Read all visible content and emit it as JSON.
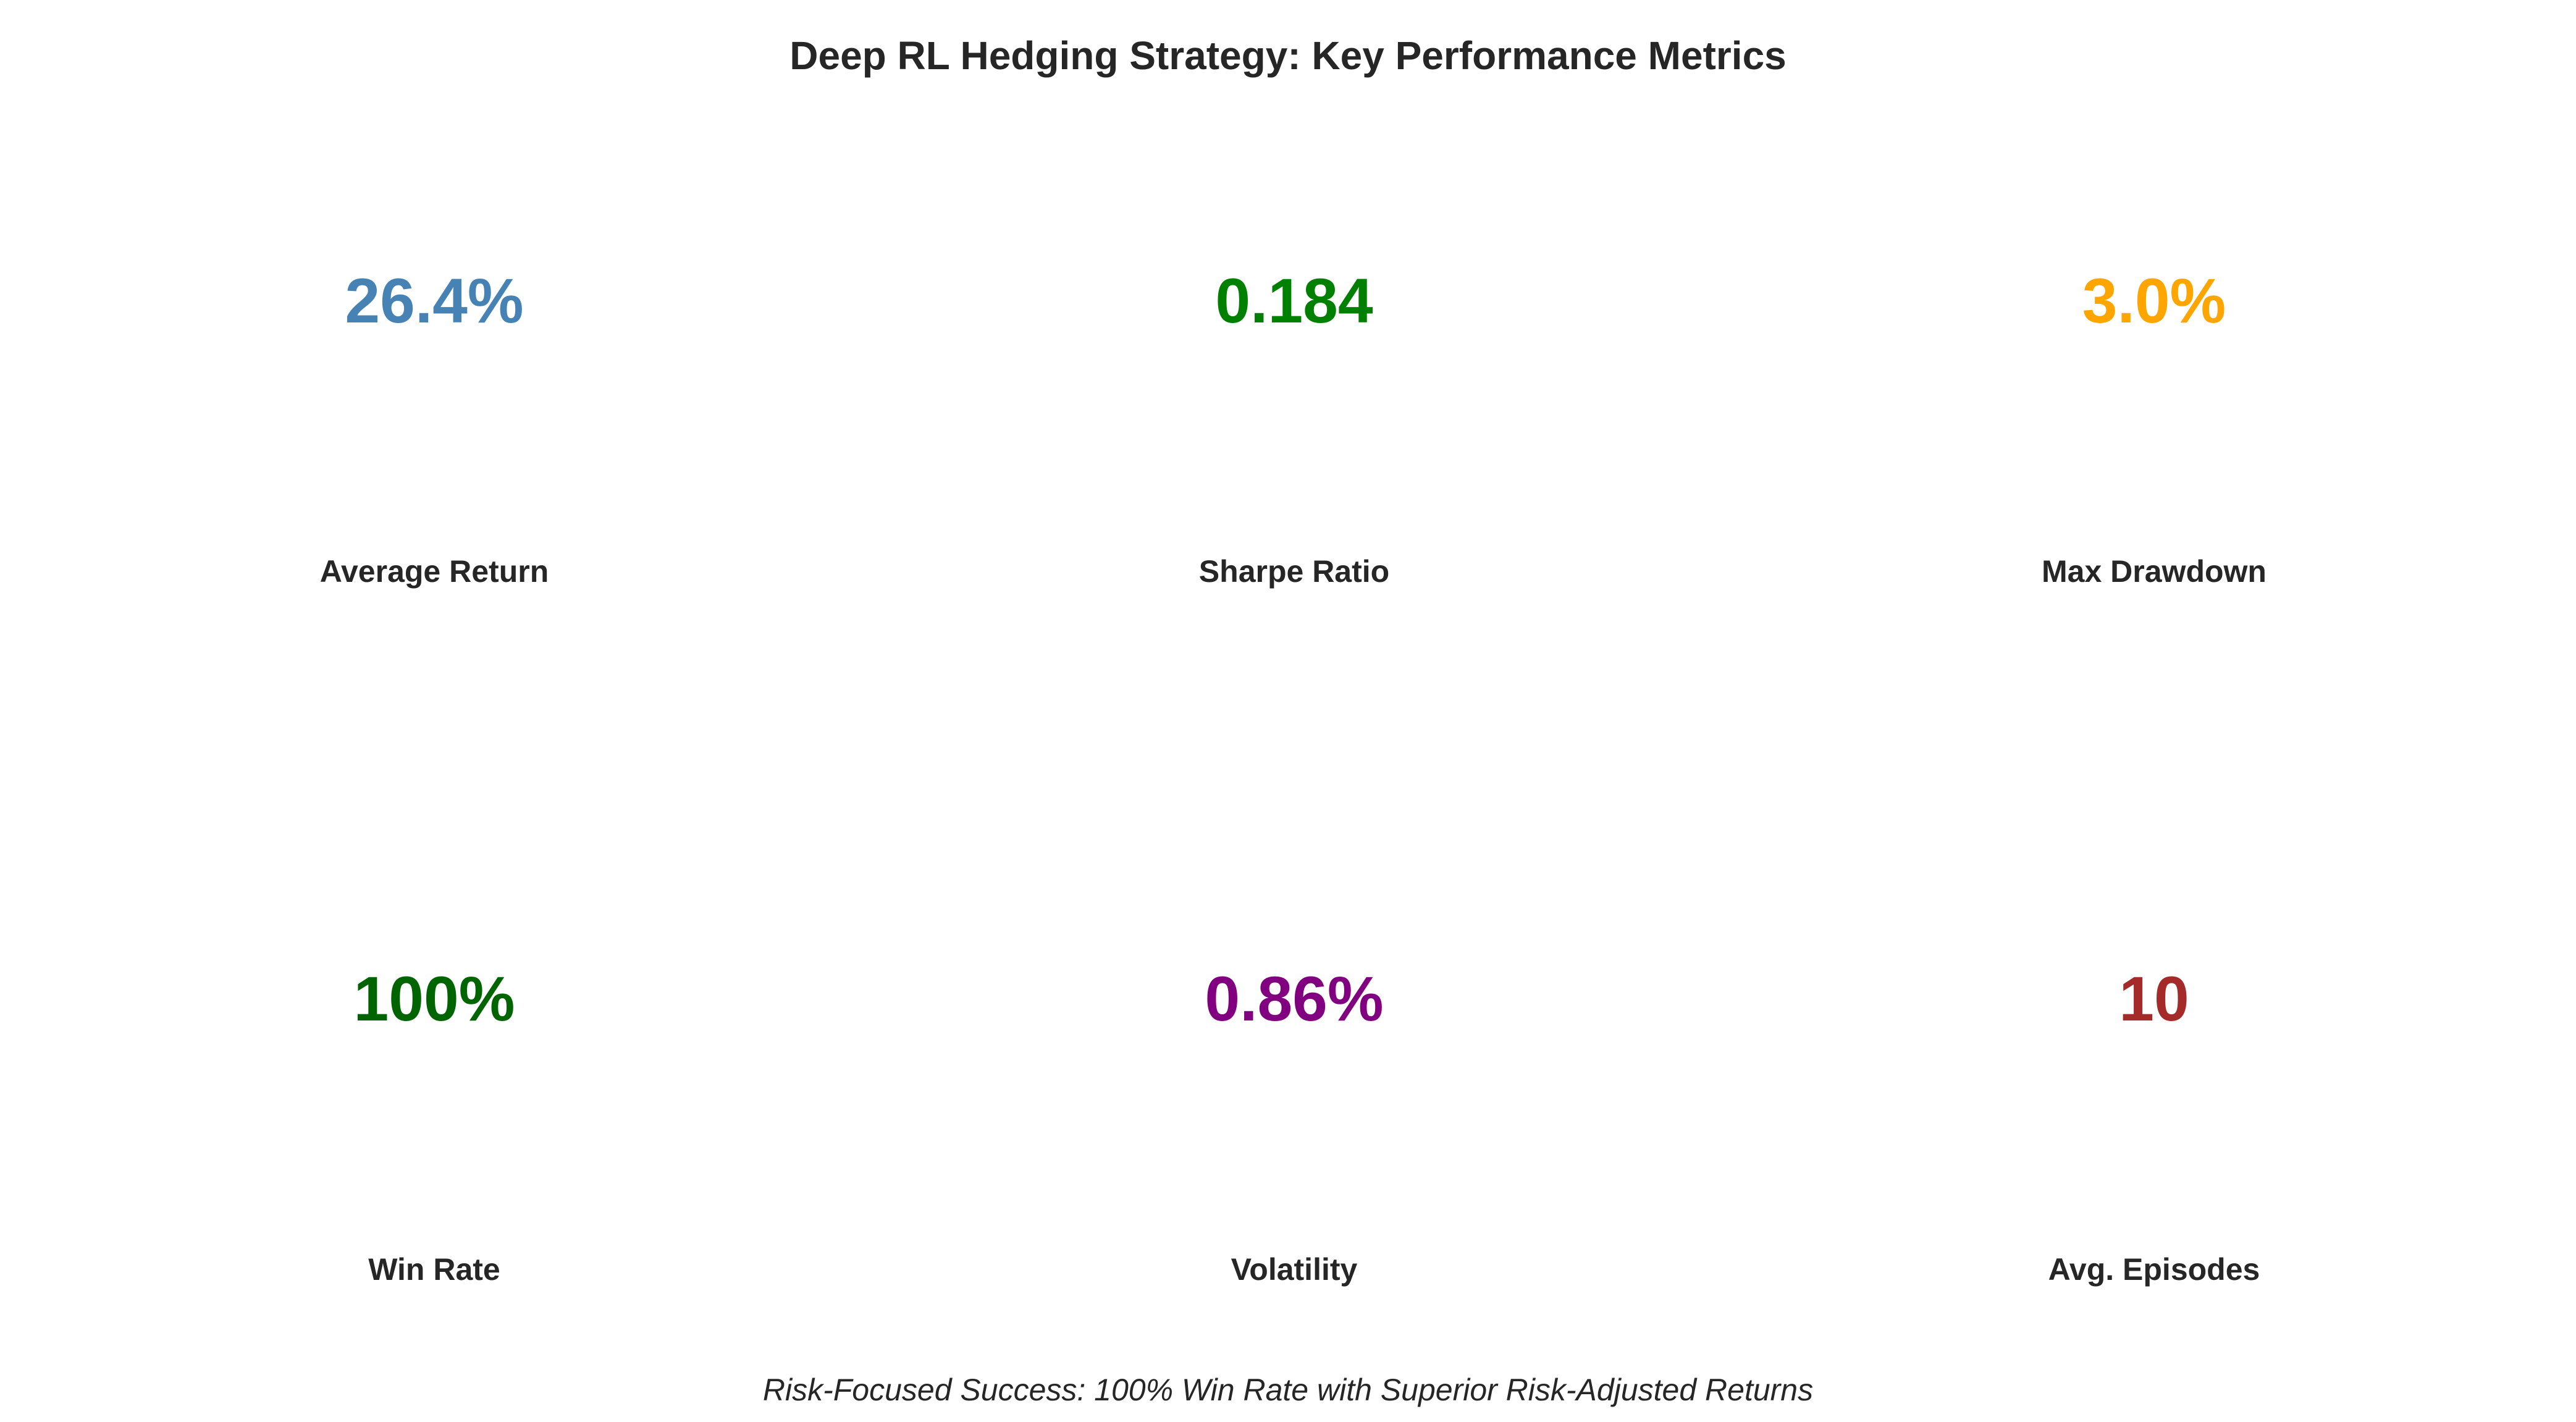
{
  "chart_data": {
    "type": "table",
    "title": "Deep RL Hedging Strategy: Key Performance Metrics",
    "layout": "2 rows x 3 columns",
    "metrics": [
      {
        "label": "Average Return",
        "value": "26.4%",
        "color": "#4682B4"
      },
      {
        "label": "Sharpe Ratio",
        "value": "0.184",
        "color": "#008000"
      },
      {
        "label": "Max Drawdown",
        "value": "3.0%",
        "color": "#FFA500"
      },
      {
        "label": "Win Rate",
        "value": "100%",
        "color": "#006400"
      },
      {
        "label": "Volatility",
        "value": "0.86%",
        "color": "#800080"
      },
      {
        "label": "Avg. Episodes",
        "value": "10",
        "color": "#A52A2A"
      }
    ],
    "footnote": "Risk-Focused Success: 100% Win Rate with Superior Risk-Adjusted Returns"
  }
}
